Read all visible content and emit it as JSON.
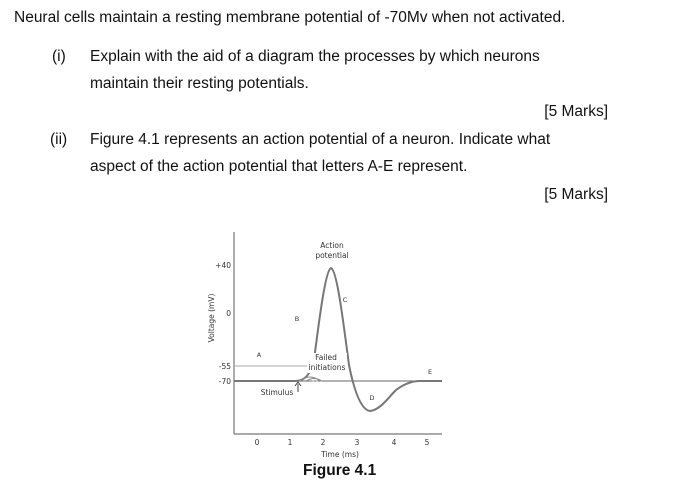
{
  "question": {
    "intro": "Neural cells maintain a resting membrane potential of -70Mv when not activated.",
    "parts": [
      {
        "number": "(i)",
        "lines": [
          "Explain with the aid of a diagram the processes by which neurons",
          "maintain their resting potentials."
        ],
        "marks": "[5 Marks]"
      },
      {
        "number": "(ii)",
        "lines": [
          "Figure 4.1 represents an action potential of a neuron. Indicate what",
          "aspect of the action potential that letters A-E represent."
        ],
        "marks": "[5 Marks]"
      }
    ]
  },
  "figure": {
    "caption": "Figure 4.1",
    "ylabel": "Voltage (mV)",
    "xlabel": "Time (ms)",
    "yticks": [
      "+40",
      "0",
      "-55",
      "-70"
    ],
    "xticks": [
      "0",
      "1",
      "2",
      "3",
      "4",
      "5"
    ],
    "annotations": {
      "action_potential_line1": "Action",
      "action_potential_line2": "potential",
      "failed_line1": "Failed",
      "failed_line2": "initiations",
      "stimulus": "Stimulus"
    },
    "letters": [
      "A",
      "B",
      "C",
      "D",
      "E"
    ]
  }
}
